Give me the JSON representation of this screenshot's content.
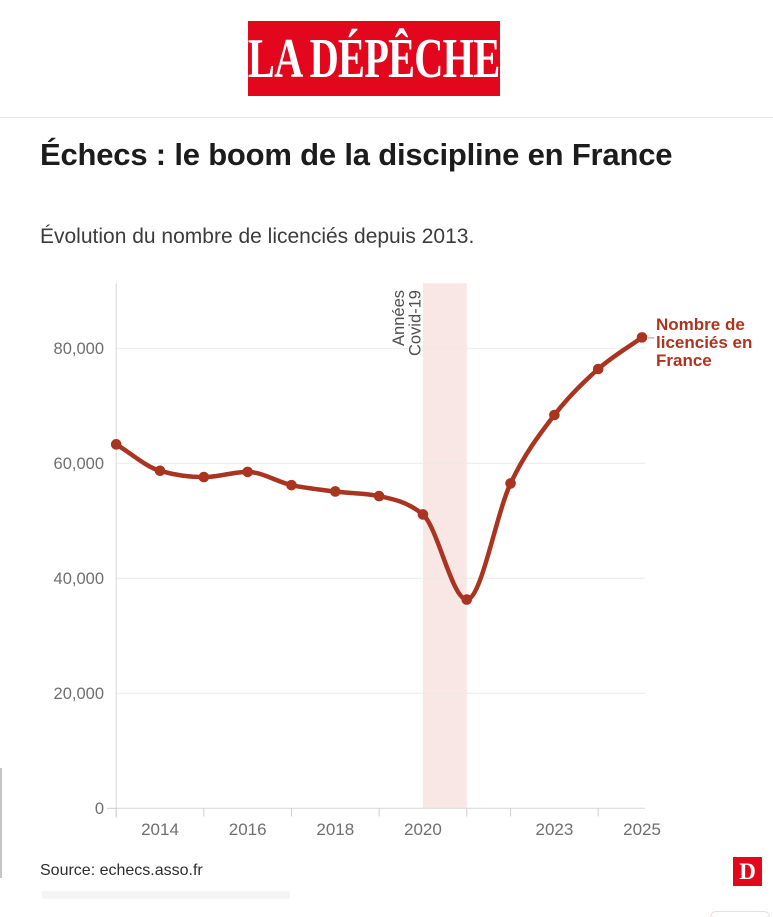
{
  "header": {
    "logo_text": "LA DÉPÊCHE",
    "logo_bg": "#e2071c",
    "logo_text_color": "#ffffff"
  },
  "article": {
    "title": "Échecs : le boom de la discipline en France",
    "subtitle": "Évolution du nombre de licenciés depuis 2013."
  },
  "chart_data": {
    "type": "line",
    "title": "Échecs : le boom de la discipline en France",
    "subtitle": "Évolution du nombre de licenciés depuis 2013.",
    "xlabel": "",
    "ylabel": "",
    "x": [
      2013,
      2014,
      2015,
      2016,
      2017,
      2018,
      2019,
      2020,
      2021,
      2022,
      2023,
      2024,
      2025
    ],
    "series": [
      {
        "name": "Nombre de licenciés en France",
        "values": [
          63300,
          58700,
          57600,
          58500,
          56200,
          55100,
          54300,
          51100,
          36300,
          56500,
          68400,
          76400,
          81900
        ]
      }
    ],
    "ylim": [
      0,
      91000
    ],
    "xlim": [
      2013,
      2025
    ],
    "grid": true,
    "line_color": "#a93420",
    "dot_color": "#a93420",
    "grid_color": "#eaeaea",
    "baseline_color": "#d8d8d8",
    "tick_color": "#cfcfcf",
    "axis_text_color": "#6f6f6f",
    "y_ticks": [
      {
        "value": 0,
        "label": "0"
      },
      {
        "value": 20000,
        "label": "20,000"
      },
      {
        "value": 40000,
        "label": "40,000"
      },
      {
        "value": 60000,
        "label": "60,000"
      },
      {
        "value": 80000,
        "label": "80,000"
      }
    ],
    "x_ticks": [
      {
        "value": 2014,
        "label": "2014"
      },
      {
        "value": 2016,
        "label": "2016"
      },
      {
        "value": 2018,
        "label": "2018"
      },
      {
        "value": 2020,
        "label": "2020"
      },
      {
        "value": 2023,
        "label": "2023"
      },
      {
        "value": 2025,
        "label": "2025"
      }
    ],
    "minor_tick_years": [
      2013,
      2015,
      2017,
      2019,
      2021,
      2022,
      2024
    ],
    "annotations": {
      "covid_band": {
        "from": 2020,
        "to": 2021,
        "color": "#f8e7e5",
        "label_lines": [
          "Années",
          "Covid-19"
        ],
        "label_color": "#4f4f4f"
      },
      "series_label": {
        "lines": [
          "Nombre de",
          "licenciés en",
          "France"
        ],
        "color": "#ad3420"
      }
    },
    "legend_position": "end-of-line"
  },
  "footer": {
    "source": "Source: echecs.asso.fr",
    "logo_letter": "D",
    "logo_bg": "#e2071c"
  }
}
